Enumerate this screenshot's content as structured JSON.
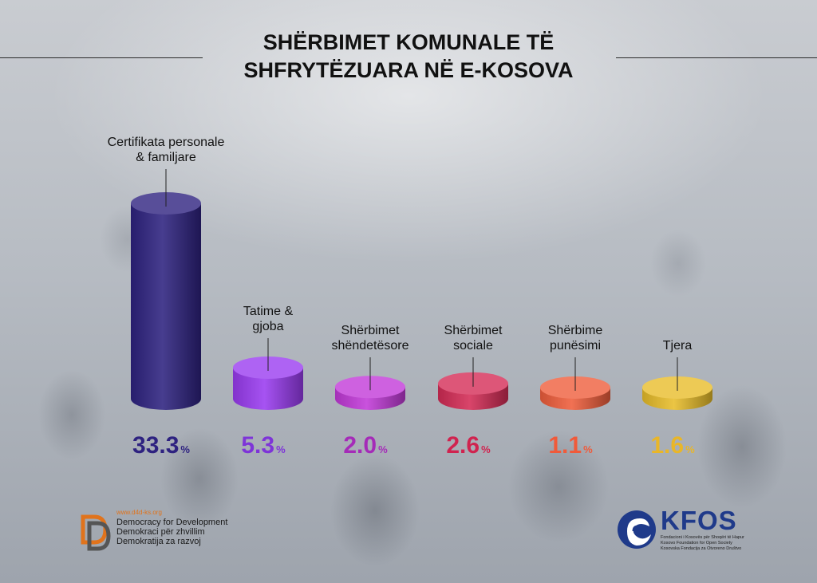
{
  "title_lines": [
    "SHËRBIMET KOMUNALE TË",
    "SHFRYTËZUARA NË E-KOSOVA"
  ],
  "chart_data": {
    "type": "bar",
    "title": "SHËRBIMET KOMUNALE TË SHFRYTËZUARA NË E-KOSOVA",
    "categories": [
      [
        "Certifikata personale",
        "& familjare"
      ],
      [
        "Tatime &",
        "gjoba"
      ],
      [
        "Shërbimet",
        "shëndetësore"
      ],
      [
        "Shërbimet",
        "sociale"
      ],
      [
        "Shërbime",
        "punësimi"
      ],
      [
        "Tjera"
      ]
    ],
    "values": [
      33.3,
      5.3,
      2.0,
      2.6,
      1.1,
      1.6
    ],
    "value_labels": [
      "33.3",
      "5.3",
      "2.0",
      "2.6",
      "1.1",
      "1.6"
    ],
    "unit": "%",
    "colors": [
      "#2e2280",
      "#9a3cf0",
      "#c23ad8",
      "#d42c56",
      "#ef5e3c",
      "#e8bd2a"
    ],
    "label_colors": [
      "#2e2280",
      "#7e34d8",
      "#a52bb8",
      "#d0234f",
      "#f05a3a",
      "#e9b628"
    ],
    "ylim": [
      0,
      33.3
    ],
    "xlabel": "",
    "ylabel": "",
    "legend": "none",
    "grid": false
  },
  "footer": {
    "d4d_url": "www.d4d-ks.org",
    "d4d_lines": [
      "Democracy for Development",
      "Demokraci për zhvillim",
      "Demokratija za razvoj"
    ],
    "kfos_name": "KFOS",
    "kfos_lines": [
      "Fondacioni i Kosovës për Shoqëri të Hapur",
      "Kosovo Foundation for Open Society",
      "Kosovska Fondacija za Otvoreno Društvo"
    ]
  }
}
